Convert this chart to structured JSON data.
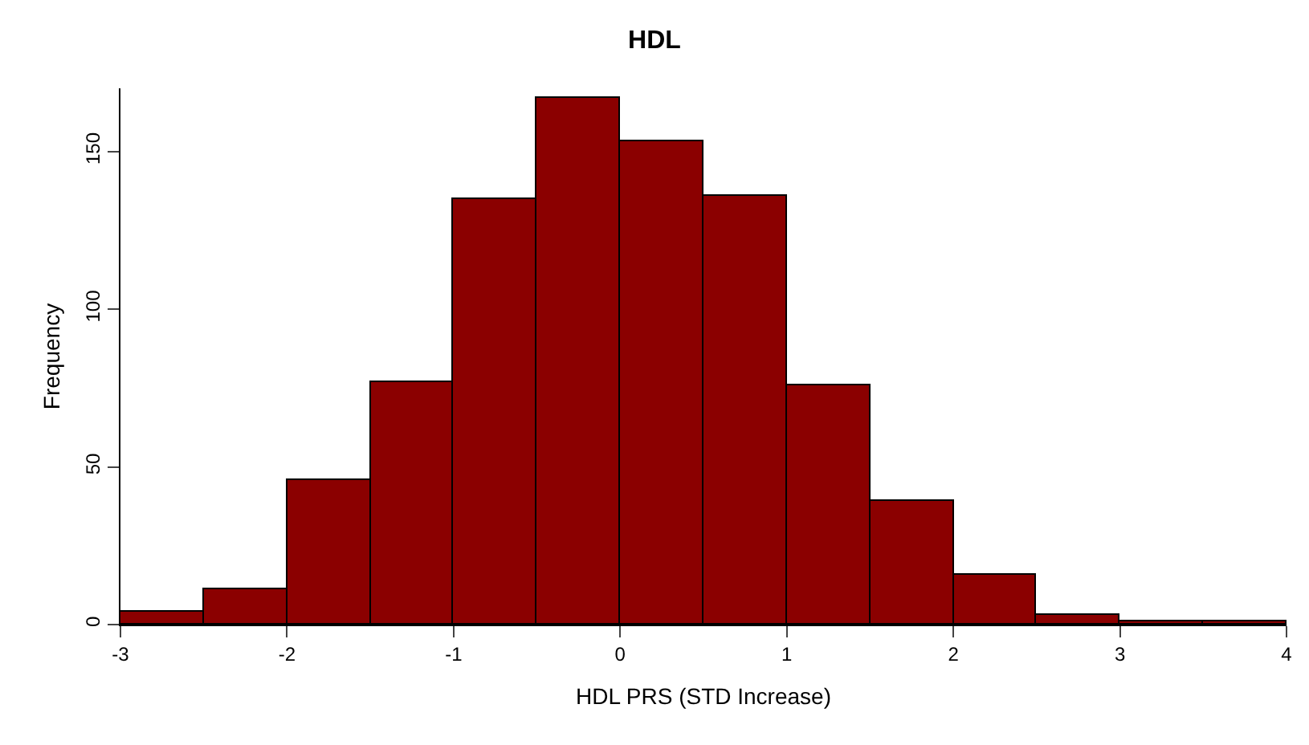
{
  "chart_data": {
    "type": "histogram",
    "title": "HDL",
    "xlabel": "HDL PRS (STD Increase)",
    "ylabel": "Frequency",
    "bins": [
      -3,
      -2.5,
      -2,
      -1.5,
      -1,
      -0.5,
      0,
      0.5,
      1,
      1.5,
      2,
      2.5,
      3,
      3.5,
      4
    ],
    "values": [
      4,
      11,
      46,
      77,
      135,
      167,
      153,
      136,
      76,
      39,
      16,
      3,
      1,
      1
    ],
    "color": "#8b0000",
    "xlim": [
      -3,
      4
    ],
    "xticks": [
      -3,
      -2,
      -1,
      0,
      1,
      2,
      3,
      4
    ],
    "ylim": [
      0,
      170
    ],
    "yticks": [
      0,
      50,
      100,
      150
    ]
  }
}
